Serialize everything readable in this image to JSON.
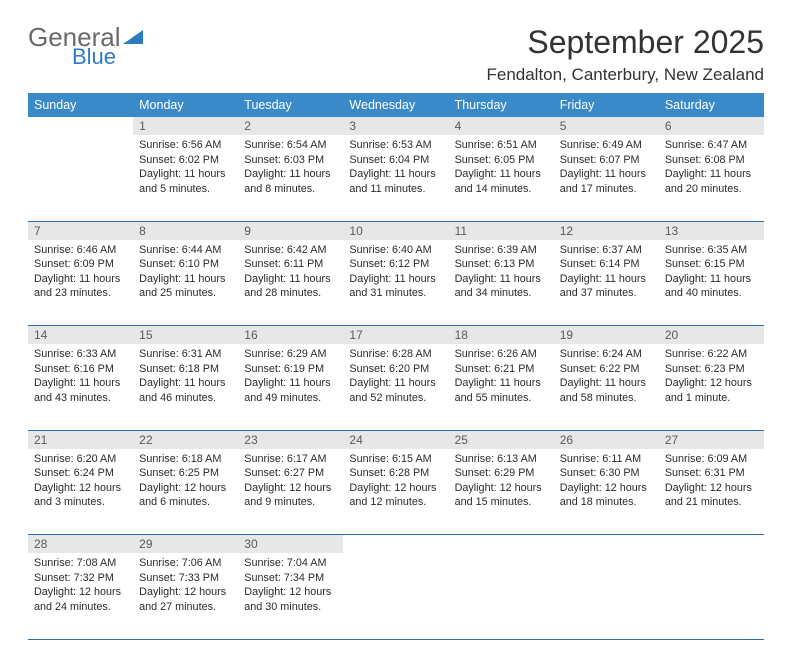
{
  "logo": {
    "part1": "General",
    "part2": "Blue"
  },
  "title": "September 2025",
  "subtitle": "Fendalton, Canterbury, New Zealand",
  "colors": {
    "header_bg": "#3a8ac9",
    "header_text": "#ffffff",
    "daynum_bg": "#e7e7e7",
    "daynum_text": "#5a5a5a",
    "divider": "#2e6ea8",
    "body_text": "#2b2b2b",
    "title_text": "#333333",
    "logo_gray": "#6a6a6a",
    "logo_blue": "#2e7cc0"
  },
  "weekdays": [
    "Sunday",
    "Monday",
    "Tuesday",
    "Wednesday",
    "Thursday",
    "Friday",
    "Saturday"
  ],
  "weeks": [
    [
      null,
      {
        "n": "1",
        "sr": "Sunrise: 6:56 AM",
        "ss": "Sunset: 6:02 PM",
        "d1": "Daylight: 11 hours",
        "d2": "and 5 minutes."
      },
      {
        "n": "2",
        "sr": "Sunrise: 6:54 AM",
        "ss": "Sunset: 6:03 PM",
        "d1": "Daylight: 11 hours",
        "d2": "and 8 minutes."
      },
      {
        "n": "3",
        "sr": "Sunrise: 6:53 AM",
        "ss": "Sunset: 6:04 PM",
        "d1": "Daylight: 11 hours",
        "d2": "and 11 minutes."
      },
      {
        "n": "4",
        "sr": "Sunrise: 6:51 AM",
        "ss": "Sunset: 6:05 PM",
        "d1": "Daylight: 11 hours",
        "d2": "and 14 minutes."
      },
      {
        "n": "5",
        "sr": "Sunrise: 6:49 AM",
        "ss": "Sunset: 6:07 PM",
        "d1": "Daylight: 11 hours",
        "d2": "and 17 minutes."
      },
      {
        "n": "6",
        "sr": "Sunrise: 6:47 AM",
        "ss": "Sunset: 6:08 PM",
        "d1": "Daylight: 11 hours",
        "d2": "and 20 minutes."
      }
    ],
    [
      {
        "n": "7",
        "sr": "Sunrise: 6:46 AM",
        "ss": "Sunset: 6:09 PM",
        "d1": "Daylight: 11 hours",
        "d2": "and 23 minutes."
      },
      {
        "n": "8",
        "sr": "Sunrise: 6:44 AM",
        "ss": "Sunset: 6:10 PM",
        "d1": "Daylight: 11 hours",
        "d2": "and 25 minutes."
      },
      {
        "n": "9",
        "sr": "Sunrise: 6:42 AM",
        "ss": "Sunset: 6:11 PM",
        "d1": "Daylight: 11 hours",
        "d2": "and 28 minutes."
      },
      {
        "n": "10",
        "sr": "Sunrise: 6:40 AM",
        "ss": "Sunset: 6:12 PM",
        "d1": "Daylight: 11 hours",
        "d2": "and 31 minutes."
      },
      {
        "n": "11",
        "sr": "Sunrise: 6:39 AM",
        "ss": "Sunset: 6:13 PM",
        "d1": "Daylight: 11 hours",
        "d2": "and 34 minutes."
      },
      {
        "n": "12",
        "sr": "Sunrise: 6:37 AM",
        "ss": "Sunset: 6:14 PM",
        "d1": "Daylight: 11 hours",
        "d2": "and 37 minutes."
      },
      {
        "n": "13",
        "sr": "Sunrise: 6:35 AM",
        "ss": "Sunset: 6:15 PM",
        "d1": "Daylight: 11 hours",
        "d2": "and 40 minutes."
      }
    ],
    [
      {
        "n": "14",
        "sr": "Sunrise: 6:33 AM",
        "ss": "Sunset: 6:16 PM",
        "d1": "Daylight: 11 hours",
        "d2": "and 43 minutes."
      },
      {
        "n": "15",
        "sr": "Sunrise: 6:31 AM",
        "ss": "Sunset: 6:18 PM",
        "d1": "Daylight: 11 hours",
        "d2": "and 46 minutes."
      },
      {
        "n": "16",
        "sr": "Sunrise: 6:29 AM",
        "ss": "Sunset: 6:19 PM",
        "d1": "Daylight: 11 hours",
        "d2": "and 49 minutes."
      },
      {
        "n": "17",
        "sr": "Sunrise: 6:28 AM",
        "ss": "Sunset: 6:20 PM",
        "d1": "Daylight: 11 hours",
        "d2": "and 52 minutes."
      },
      {
        "n": "18",
        "sr": "Sunrise: 6:26 AM",
        "ss": "Sunset: 6:21 PM",
        "d1": "Daylight: 11 hours",
        "d2": "and 55 minutes."
      },
      {
        "n": "19",
        "sr": "Sunrise: 6:24 AM",
        "ss": "Sunset: 6:22 PM",
        "d1": "Daylight: 11 hours",
        "d2": "and 58 minutes."
      },
      {
        "n": "20",
        "sr": "Sunrise: 6:22 AM",
        "ss": "Sunset: 6:23 PM",
        "d1": "Daylight: 12 hours",
        "d2": "and 1 minute."
      }
    ],
    [
      {
        "n": "21",
        "sr": "Sunrise: 6:20 AM",
        "ss": "Sunset: 6:24 PM",
        "d1": "Daylight: 12 hours",
        "d2": "and 3 minutes."
      },
      {
        "n": "22",
        "sr": "Sunrise: 6:18 AM",
        "ss": "Sunset: 6:25 PM",
        "d1": "Daylight: 12 hours",
        "d2": "and 6 minutes."
      },
      {
        "n": "23",
        "sr": "Sunrise: 6:17 AM",
        "ss": "Sunset: 6:27 PM",
        "d1": "Daylight: 12 hours",
        "d2": "and 9 minutes."
      },
      {
        "n": "24",
        "sr": "Sunrise: 6:15 AM",
        "ss": "Sunset: 6:28 PM",
        "d1": "Daylight: 12 hours",
        "d2": "and 12 minutes."
      },
      {
        "n": "25",
        "sr": "Sunrise: 6:13 AM",
        "ss": "Sunset: 6:29 PM",
        "d1": "Daylight: 12 hours",
        "d2": "and 15 minutes."
      },
      {
        "n": "26",
        "sr": "Sunrise: 6:11 AM",
        "ss": "Sunset: 6:30 PM",
        "d1": "Daylight: 12 hours",
        "d2": "and 18 minutes."
      },
      {
        "n": "27",
        "sr": "Sunrise: 6:09 AM",
        "ss": "Sunset: 6:31 PM",
        "d1": "Daylight: 12 hours",
        "d2": "and 21 minutes."
      }
    ],
    [
      {
        "n": "28",
        "sr": "Sunrise: 7:08 AM",
        "ss": "Sunset: 7:32 PM",
        "d1": "Daylight: 12 hours",
        "d2": "and 24 minutes."
      },
      {
        "n": "29",
        "sr": "Sunrise: 7:06 AM",
        "ss": "Sunset: 7:33 PM",
        "d1": "Daylight: 12 hours",
        "d2": "and 27 minutes."
      },
      {
        "n": "30",
        "sr": "Sunrise: 7:04 AM",
        "ss": "Sunset: 7:34 PM",
        "d1": "Daylight: 12 hours",
        "d2": "and 30 minutes."
      },
      null,
      null,
      null,
      null
    ]
  ]
}
